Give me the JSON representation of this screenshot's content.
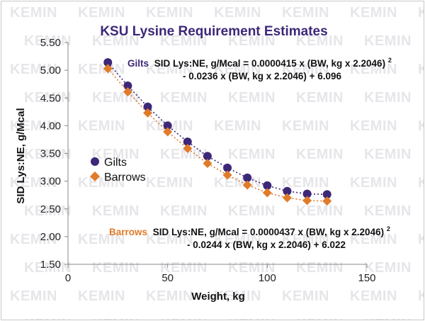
{
  "chart_data": {
    "type": "scatter",
    "title": "KSU Lysine Requirement Estimates",
    "xlabel": "Weight, kg",
    "ylabel": "SID Lys:NE, g/Mcal",
    "xlim": [
      0,
      150
    ],
    "ylim": [
      1.5,
      5.5
    ],
    "x_ticks": [
      "0",
      "50",
      "100",
      "150"
    ],
    "y_ticks": [
      "1.50",
      "2.00",
      "2.50",
      "3.00",
      "3.50",
      "4.00",
      "4.50",
      "5.00",
      "5.50"
    ],
    "grid": false,
    "legend_position": "left-middle",
    "series": [
      {
        "name": "Gilts",
        "marker": "circle",
        "color": "#3d2778",
        "x": [
          20,
          30,
          40,
          50,
          60,
          70,
          80,
          90,
          100,
          110,
          120,
          130
        ],
        "y": [
          5.14,
          4.72,
          4.34,
          4.0,
          3.71,
          3.45,
          3.24,
          3.06,
          2.92,
          2.82,
          2.77,
          2.76
        ]
      },
      {
        "name": "Barrows",
        "marker": "diamond",
        "color": "#e07b2a",
        "x": [
          20,
          30,
          40,
          50,
          60,
          70,
          80,
          90,
          100,
          110,
          120,
          130
        ],
        "y": [
          5.03,
          4.61,
          4.23,
          3.89,
          3.59,
          3.32,
          3.11,
          2.93,
          2.79,
          2.7,
          2.65,
          2.64
        ]
      }
    ],
    "annotations": {
      "gilts": {
        "series_label": "Gilts",
        "line1": "SID Lys:NE, g/Mcal = 0.0000415 x (BW, kg x 2.2046)",
        "line1_sup": "2",
        "line2": "- 0.0236 x (BW, kg x 2.2046) + 6.096"
      },
      "barrows": {
        "series_label": "Barrows",
        "line1": "SID Lys:NE, g/Mcal = 0.0000437 x (BW, kg x 2.2046)",
        "line1_sup": "2",
        "line2": "- 0.0244 x (BW, kg x 2.2046) + 6.022"
      }
    },
    "colors": {
      "title": "#3d2778",
      "gilts": "#3d2778",
      "barrows": "#e07b2a",
      "axis": "#888888"
    }
  },
  "watermark": {
    "text": "KEMIN"
  }
}
